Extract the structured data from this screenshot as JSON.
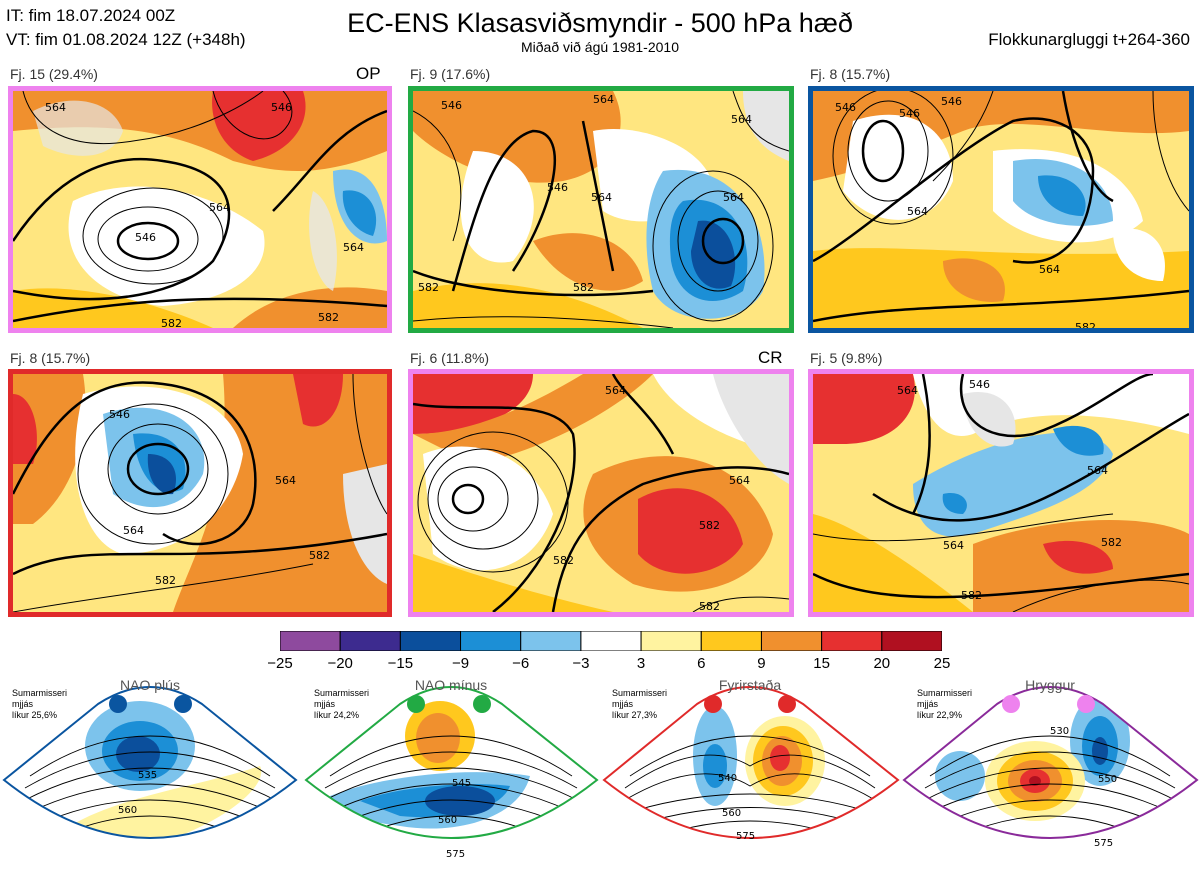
{
  "header": {
    "it_line": "IT: fim 18.07.2024 00Z",
    "vt_line": "VT: fim 01.08.2024 12Z  (+348h)",
    "title": "EC-ENS Klasasviðsmyndir - 500 hPa hæð",
    "subtitle": "Miðað við ágú 1981-2010",
    "window": "Flokkunargluggi t+264-360"
  },
  "panels": [
    {
      "label": "Fj. 15 (29.4%)",
      "tag": "OP",
      "border": "#ee82ee",
      "contour_labels": [
        "564",
        "546",
        "564",
        "564",
        "582",
        "582",
        "546"
      ]
    },
    {
      "label": "Fj. 9 (17.6%)",
      "tag": "",
      "border": "#22aa44",
      "contour_labels": [
        "564",
        "546",
        "564",
        "564",
        "546",
        "582",
        "582",
        "564"
      ]
    },
    {
      "label": "Fj. 8 (15.7%)",
      "tag": "",
      "border": "#0a55a0",
      "contour_labels": [
        "546",
        "546",
        "546",
        "564",
        "564",
        "582"
      ]
    },
    {
      "label": "Fj. 8 (15.7%)",
      "tag": "",
      "border": "#e02a2a",
      "contour_labels": [
        "546",
        "564",
        "564",
        "582",
        "582"
      ]
    },
    {
      "label": "Fj. 6 (11.8%)",
      "tag": "CR",
      "border": "#ee82ee",
      "contour_labels": [
        "564",
        "564",
        "582",
        "582",
        "582"
      ]
    },
    {
      "label": "Fj. 5 (9.8%)",
      "tag": "",
      "border": "#ee82ee",
      "contour_labels": [
        "564",
        "546",
        "564",
        "564",
        "582",
        "582"
      ]
    }
  ],
  "colorbar": {
    "ticks": [
      "−25",
      "−20",
      "−15",
      "−9",
      "−6",
      "−3",
      "3",
      "6",
      "9",
      "15",
      "20",
      "25"
    ],
    "colors": [
      "#8e4a9e",
      "#3d2b8f",
      "#0b4f9c",
      "#1c8fd6",
      "#7cc3ec",
      "#ffffff",
      "#fff3a0",
      "#ffc81e",
      "#f0902e",
      "#e63030",
      "#b01020"
    ]
  },
  "regimes": [
    {
      "name": "NAO plús",
      "info": [
        "Sumarmisseri",
        "mjjás",
        "líkur 25,6%"
      ],
      "color": "#0a55a0",
      "contour_labels": [
        "535",
        "560"
      ]
    },
    {
      "name": "NAO mínus",
      "info": [
        "Sumarmisseri",
        "mjjás",
        "líkur 24,2%"
      ],
      "color": "#22aa44",
      "contour_labels": [
        "545",
        "560",
        "575"
      ]
    },
    {
      "name": "Fyrirstaða",
      "info": [
        "Sumarmisseri",
        "mjjás",
        "líkur 27,3%"
      ],
      "color": "#e02a2a",
      "contour_labels": [
        "540",
        "560",
        "575"
      ]
    },
    {
      "name": "Hryggur",
      "info": [
        "Sumarmisseri",
        "mjjás",
        "líkur 22,9%"
      ],
      "color": "#ee82ee",
      "contour_labels": [
        "530",
        "550",
        "575"
      ]
    }
  ],
  "regime_border_colors": [
    "#0a55a0",
    "#22aa44",
    "#e02a2a",
    "#8a2a9a"
  ]
}
